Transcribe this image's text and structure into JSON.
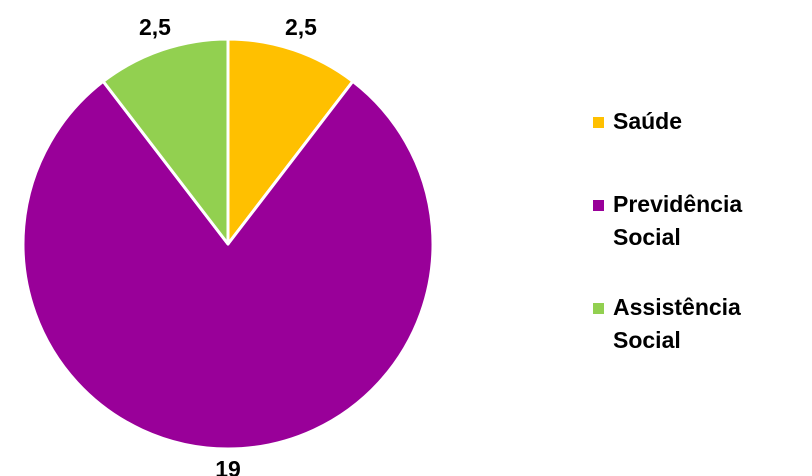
{
  "chart_data": {
    "type": "pie",
    "title": "",
    "categories": [
      "Saúde",
      "Previdência Social",
      "Assistência Social"
    ],
    "values": [
      2.5,
      19,
      2.5
    ],
    "value_labels": [
      "2,5",
      "19",
      "2,5"
    ],
    "colors": [
      "#FFC000",
      "#990099",
      "#92D050"
    ],
    "slice_border_color": "#FFFFFF",
    "legend_position": "right",
    "legend": [
      {
        "label": "Saúde",
        "color": "#FFC000"
      },
      {
        "label": "Previdência Social",
        "color": "#990099"
      },
      {
        "label": "Assistência Social",
        "color": "#92D050"
      }
    ]
  }
}
